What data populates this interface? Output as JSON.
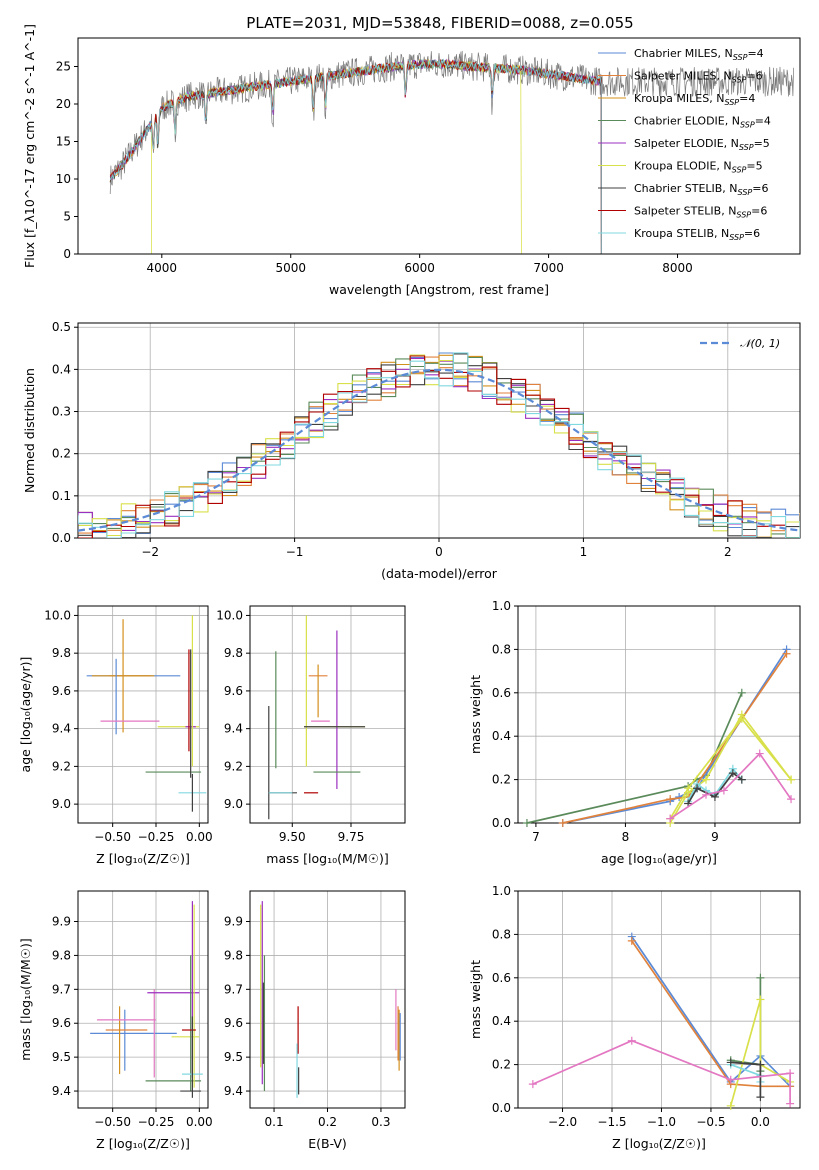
{
  "figure_title": "PLATE=2031, MJD=53848, FIBERID=0088, z=0.055",
  "colors": {
    "Chabrier MILES": "#5b8ad6",
    "Salpeter MILES": "#e0823c",
    "Kroupa MILES": "#d4901e",
    "Chabrier ELODIE": "#5a8a5a",
    "Salpeter ELODIE": "#9b30c0",
    "Kroupa ELODIE": "#d8e04a",
    "Chabrier STELIB": "#404040",
    "Salpeter STELIB": "#b00000",
    "Kroupa STELIB": "#80d8e0",
    "Pink": "#e377c2",
    "Normal": "#5b8ad6"
  },
  "chart_data": [
    {
      "type": "line",
      "title": "PLATE=2031, MJD=53848, FIBERID=0088, z=0.055",
      "xlabel": "wavelength [Angstrom, rest frame]",
      "ylabel": "Flux [f_λ10^-17 erg cm^-2 s^-1 A^-1]",
      "xlim": [
        3350,
        8950
      ],
      "ylim": [
        0,
        28.8
      ],
      "xticks": [
        4000,
        5000,
        6000,
        7000,
        8000
      ],
      "yticks": [
        0,
        5,
        10,
        15,
        20,
        25
      ],
      "grid": false,
      "legend_placement": "right",
      "legend": [
        {
          "name": "Chabrier MILES",
          "nssp": "4"
        },
        {
          "name": "Salpeter MILES",
          "nssp": "6"
        },
        {
          "name": "Kroupa MILES",
          "nssp": "4"
        },
        {
          "name": "Chabrier ELODIE",
          "nssp": "4"
        },
        {
          "name": "Salpeter ELODIE",
          "nssp": "5"
        },
        {
          "name": "Kroupa ELODIE",
          "nssp": "5"
        },
        {
          "name": "Chabrier STELIB",
          "nssp": "6"
        },
        {
          "name": "Salpeter STELIB",
          "nssp": "6"
        },
        {
          "name": "Kroupa STELIB",
          "nssp": "6"
        }
      ],
      "continuum": {
        "x": [
          3600,
          3700,
          3800,
          3900,
          4000,
          4200,
          4400,
          4600,
          4800,
          5000,
          5200,
          5400,
          5600,
          5800,
          6000,
          6200,
          6400,
          6600,
          6800,
          7000,
          7200,
          7400
        ],
        "y": [
          10,
          12,
          14.5,
          17,
          19.5,
          21,
          21.5,
          22,
          22.5,
          23,
          23.5,
          24,
          24.5,
          25,
          25.3,
          25.3,
          25,
          24.8,
          24.5,
          24,
          23.5,
          23
        ]
      },
      "absorption_features": [
        3934,
        3969,
        4102,
        4340,
        4861,
        5175,
        5270,
        5890,
        6563
      ],
      "model_drops": [
        3920,
        6790,
        7410
      ]
    },
    {
      "type": "line",
      "xlabel": "(data-model)/error",
      "ylabel": "Normed distribution",
      "xlim": [
        -2.5,
        2.5
      ],
      "ylim": [
        0,
        0.51
      ],
      "xticks": [
        -2,
        -1,
        0,
        1,
        2
      ],
      "yticks": [
        0.0,
        0.1,
        0.2,
        0.3,
        0.4,
        0.5
      ],
      "grid": true,
      "legend": [
        {
          "name": "𝒩(0, 1)"
        }
      ],
      "legend_placement": "top-right",
      "bin_width": 0.1
    },
    {
      "type": "scatter",
      "xlabel": "Z [log₁₀(Z/Z☉)]",
      "ylabel": "age  [log₁₀(age/yr)]",
      "xlim": [
        -0.7,
        0.05
      ],
      "ylim": [
        8.9,
        10.05
      ],
      "xticks": [
        -0.5,
        -0.25,
        0.0
      ],
      "xtick_labels": [
        "−0.50",
        "−0.25",
        "0.00"
      ],
      "yticks": [
        9.0,
        9.2,
        9.4,
        9.6,
        9.8,
        10.0
      ],
      "grid": true,
      "errorbars": [
        {
          "s": "Chabrier MILES",
          "x": -0.38,
          "xerr": 0.27,
          "y": 9.68,
          "yerr": 0
        },
        {
          "s": "Salpeter MILES",
          "x": -0.4,
          "xerr": 0.12,
          "y": 9.68,
          "yerr": 0.0
        },
        {
          "s": "Kroupa MILES",
          "x": -0.44,
          "xerr": 0.18,
          "y": 9.68,
          "yerr": 0.3
        },
        {
          "s": "Chabrier MILES",
          "x": -0.48,
          "xerr": 0.0,
          "y": 9.57,
          "yerr": 0.2
        },
        {
          "s": "Pink",
          "x": -0.4,
          "xerr": 0.17,
          "y": 9.44,
          "yerr": 0.0
        },
        {
          "s": "Chabrier ELODIE",
          "x": -0.15,
          "xerr": 0.16,
          "y": 9.17,
          "yerr": 0.0
        },
        {
          "s": "Kroupa ELODIE",
          "x": -0.12,
          "xerr": 0.12,
          "y": 9.41,
          "yerr": 0.0
        },
        {
          "s": "Salpeter ELODIE",
          "x": -0.05,
          "xerr": 0.03,
          "y": 9.41,
          "yerr": 0.0
        },
        {
          "s": "Kroupa ELODIE",
          "x": -0.04,
          "xerr": 0.0,
          "y": 9.6,
          "yerr": 0.4
        },
        {
          "s": "Chabrier STELIB",
          "x": -0.05,
          "xerr": 0.0,
          "y": 9.48,
          "yerr": 0.34
        },
        {
          "s": "Salpeter STELIB",
          "x": -0.06,
          "xerr": 0.0,
          "y": 9.55,
          "yerr": 0.27
        },
        {
          "s": "Kroupa STELIB",
          "x": -0.04,
          "xerr": 0.08,
          "y": 9.06,
          "yerr": 0.0
        },
        {
          "s": "Chabrier STELIB",
          "x": -0.04,
          "xerr": 0.0,
          "y": 9.06,
          "yerr": 0.1
        }
      ]
    },
    {
      "type": "scatter",
      "xlabel": "mass [log₁₀(M/M☉)]",
      "ylabel": "",
      "xlim": [
        9.32,
        9.98
      ],
      "ylim": [
        8.9,
        10.05
      ],
      "xticks": [
        9.5,
        9.75
      ],
      "xtick_labels": [
        "9.50",
        "9.75"
      ],
      "yticks": [
        9.0,
        9.2,
        9.4,
        9.6,
        9.8,
        10.0
      ],
      "grid": true,
      "errorbars": [
        {
          "s": "Chabrier ELODIE",
          "x": 9.43,
          "xerr": 0.0,
          "y": 9.5,
          "yerr": 0.31
        },
        {
          "s": "Chabrier STELIB",
          "x": 9.4,
          "xerr": 0.0,
          "y": 9.22,
          "yerr": 0.3
        },
        {
          "s": "Chabrier STELIB",
          "x": 9.46,
          "xerr": 0.06,
          "y": 9.06,
          "yerr": 0.0
        },
        {
          "s": "Kroupa STELIB",
          "x": 9.45,
          "xerr": 0.05,
          "y": 9.06,
          "yerr": 0.0
        },
        {
          "s": "Salpeter STELIB",
          "x": 9.58,
          "xerr": 0.03,
          "y": 9.06,
          "yerr": 0.0
        },
        {
          "s": "Kroupa ELODIE",
          "x": 9.56,
          "xerr": 0.0,
          "y": 9.6,
          "yerr": 0.4
        },
        {
          "s": "Kroupa ELODIE",
          "x": 9.68,
          "xerr": 0.13,
          "y": 9.41,
          "yerr": 0.0
        },
        {
          "s": "Salpeter ELODIE",
          "x": 9.69,
          "xerr": 0.0,
          "y": 9.5,
          "yerr": 0.42
        },
        {
          "s": "Salpeter MILES",
          "x": 9.61,
          "xerr": 0.04,
          "y": 9.68,
          "yerr": 0.0
        },
        {
          "s": "Kroupa MILES",
          "x": 9.61,
          "xerr": 0.0,
          "y": 9.6,
          "yerr": 0.14
        },
        {
          "s": "Pink",
          "x": 9.62,
          "xerr": 0.04,
          "y": 9.44,
          "yerr": 0.0
        },
        {
          "s": "Chabrier ELODIE",
          "x": 9.69,
          "xerr": 0.1,
          "y": 9.17,
          "yerr": 0.0
        },
        {
          "s": "Chabrier STELIB",
          "x": 9.68,
          "xerr": 0.13,
          "y": 9.41,
          "yerr": 0.0
        }
      ]
    },
    {
      "type": "line",
      "xlabel": "age  [log₁₀(age/yr)]",
      "ylabel": "mass weight",
      "xlim": [
        6.8,
        9.95
      ],
      "ylim": [
        0,
        1.0
      ],
      "xticks": [
        7,
        8,
        9
      ],
      "yticks": [
        0.0,
        0.2,
        0.4,
        0.6,
        0.8,
        1.0
      ],
      "grid": true,
      "series": [
        {
          "s": "Chabrier ELODIE",
          "x": [
            6.9,
            8.7,
            8.8,
            8.9,
            9.3
          ],
          "y": [
            0.0,
            0.17,
            0.2,
            0.22,
            0.6
          ]
        },
        {
          "s": "Chabrier MILES",
          "x": [
            7.3,
            8.5,
            8.6,
            8.7,
            8.8,
            9.8
          ],
          "y": [
            0.0,
            0.1,
            0.12,
            0.14,
            0.16,
            0.8
          ]
        },
        {
          "s": "Salpeter MILES",
          "x": [
            7.3,
            8.5,
            8.7,
            9.8
          ],
          "y": [
            0.0,
            0.11,
            0.12,
            0.78
          ]
        },
        {
          "s": "Kroupa ELODIE",
          "x": [
            8.5,
            8.7,
            8.9,
            9.3,
            9.85
          ],
          "y": [
            0.0,
            0.14,
            0.2,
            0.5,
            0.2
          ]
        },
        {
          "s": "Kroupa ELODIE",
          "x": [
            8.5,
            8.7,
            9.3,
            9.85
          ],
          "y": [
            0.02,
            0.16,
            0.48,
            0.2
          ]
        },
        {
          "s": "Kroupa STELIB",
          "x": [
            8.7,
            8.8,
            8.9,
            9.0,
            9.2,
            9.3
          ],
          "y": [
            0.1,
            0.18,
            0.15,
            0.13,
            0.25,
            0.2
          ]
        },
        {
          "s": "Chabrier STELIB",
          "x": [
            8.7,
            8.8,
            9.0,
            9.2,
            9.3
          ],
          "y": [
            0.09,
            0.16,
            0.12,
            0.23,
            0.2
          ]
        },
        {
          "s": "Pink",
          "x": [
            8.5,
            8.9,
            9.1,
            9.5,
            9.85
          ],
          "y": [
            0.02,
            0.13,
            0.15,
            0.32,
            0.11
          ]
        }
      ]
    },
    {
      "type": "scatter",
      "xlabel": "Z [log₁₀(Z/Z☉)]",
      "ylabel": "mass [log₁₀(M/M☉)]",
      "xlim": [
        -0.7,
        0.05
      ],
      "ylim": [
        9.35,
        9.99
      ],
      "xticks": [
        -0.5,
        -0.25,
        0.0
      ],
      "xtick_labels": [
        "−0.50",
        "−0.25",
        "0.00"
      ],
      "yticks": [
        9.4,
        9.5,
        9.6,
        9.7,
        9.8,
        9.9
      ],
      "grid": true,
      "errorbars": [
        {
          "s": "Chabrier MILES",
          "x": -0.38,
          "xerr": 0.25,
          "y": 9.57,
          "yerr": 0.0
        },
        {
          "s": "Chabrier MILES",
          "x": -0.43,
          "xerr": 0.0,
          "y": 9.55,
          "yerr": 0.09
        },
        {
          "s": "Salpeter MILES",
          "x": -0.42,
          "xerr": 0.12,
          "y": 9.58,
          "yerr": 0.0
        },
        {
          "s": "Kroupa MILES",
          "x": -0.46,
          "xerr": 0.0,
          "y": 9.55,
          "yerr": 0.1
        },
        {
          "s": "Pink",
          "x": -0.42,
          "xerr": 0.17,
          "y": 9.61,
          "yerr": 0.0
        },
        {
          "s": "Pink",
          "x": -0.26,
          "xerr": 0.0,
          "y": 9.57,
          "yerr": 0.13
        },
        {
          "s": "Salpeter ELODIE",
          "x": -0.15,
          "xerr": 0.15,
          "y": 9.69,
          "yerr": 0.0
        },
        {
          "s": "Kroupa ELODIE",
          "x": -0.08,
          "xerr": 0.08,
          "y": 9.56,
          "yerr": 0.0
        },
        {
          "s": "Chabrier ELODIE",
          "x": -0.15,
          "xerr": 0.16,
          "y": 9.43,
          "yerr": 0.0
        },
        {
          "s": "Salpeter ELODIE",
          "x": -0.04,
          "xerr": 0.0,
          "y": 9.7,
          "yerr": 0.26
        },
        {
          "s": "Kroupa ELODIE",
          "x": -0.03,
          "xerr": 0.0,
          "y": 9.68,
          "yerr": 0.27
        },
        {
          "s": "Chabrier ELODIE",
          "x": -0.05,
          "xerr": 0.0,
          "y": 9.6,
          "yerr": 0.2
        },
        {
          "s": "Salpeter STELIB",
          "x": -0.06,
          "xerr": 0.04,
          "y": 9.58,
          "yerr": 0.0
        },
        {
          "s": "Kroupa STELIB",
          "x": -0.04,
          "xerr": 0.06,
          "y": 9.45,
          "yerr": 0.0
        },
        {
          "s": "Chabrier STELIB",
          "x": -0.05,
          "xerr": 0.06,
          "y": 9.4,
          "yerr": 0.0
        },
        {
          "s": "Chabrier STELIB",
          "x": -0.04,
          "xerr": 0.0,
          "y": 9.5,
          "yerr": 0.12
        }
      ]
    },
    {
      "type": "scatter",
      "xlabel": "E(B-V)",
      "ylabel": "",
      "xlim": [
        0.055,
        0.345
      ],
      "ylim": [
        9.35,
        9.99
      ],
      "xticks": [
        0.1,
        0.2,
        0.3
      ],
      "xtick_labels": [
        "0.1",
        "0.2",
        "0.3"
      ],
      "yticks": [
        9.4,
        9.5,
        9.6,
        9.7,
        9.8,
        9.9
      ],
      "grid": true,
      "errorbars": [
        {
          "s": "Kroupa ELODIE",
          "x": 0.075,
          "xerr": 0.0,
          "y": 9.71,
          "yerr": 0.24
        },
        {
          "s": "Salpeter ELODIE",
          "x": 0.078,
          "xerr": 0.0,
          "y": 9.69,
          "yerr": 0.27
        },
        {
          "s": "Chabrier ELODIE",
          "x": 0.082,
          "xerr": 0.0,
          "y": 9.6,
          "yerr": 0.2
        },
        {
          "s": "Chabrier STELIB",
          "x": 0.08,
          "xerr": 0.0,
          "y": 9.6,
          "yerr": 0.12
        },
        {
          "s": "Salpeter STELIB",
          "x": 0.145,
          "xerr": 0.0,
          "y": 9.58,
          "yerr": 0.07
        },
        {
          "s": "Kroupa STELIB",
          "x": 0.143,
          "xerr": 0.0,
          "y": 9.46,
          "yerr": 0.08
        },
        {
          "s": "Chabrier STELIB",
          "x": 0.146,
          "xerr": 0.0,
          "y": 9.43,
          "yerr": 0.04
        },
        {
          "s": "Pink",
          "x": 0.328,
          "xerr": 0.0,
          "y": 9.61,
          "yerr": 0.09
        },
        {
          "s": "Salpeter MILES",
          "x": 0.332,
          "xerr": 0.0,
          "y": 9.57,
          "yerr": 0.08
        },
        {
          "s": "Kroupa MILES",
          "x": 0.334,
          "xerr": 0.0,
          "y": 9.55,
          "yerr": 0.09
        },
        {
          "s": "Chabrier MILES",
          "x": 0.336,
          "xerr": 0.0,
          "y": 9.56,
          "yerr": 0.07
        }
      ]
    },
    {
      "type": "line",
      "xlabel": "Z [log₁₀(Z/Z☉)]",
      "ylabel": "mass weight",
      "xlim": [
        -2.45,
        0.4
      ],
      "ylim": [
        0,
        1.0
      ],
      "xticks": [
        -2.0,
        -1.5,
        -1.0,
        -0.5,
        0.0
      ],
      "xtick_labels": [
        "−2.0",
        "−1.5",
        "−1.0",
        "−0.5",
        "0.0"
      ],
      "yticks": [
        0.0,
        0.2,
        0.4,
        0.6,
        0.8,
        1.0
      ],
      "grid": true,
      "series": [
        {
          "s": "Chabrier MILES",
          "x": [
            -1.3,
            -0.3,
            0.0,
            0.3
          ],
          "y": [
            0.79,
            0.12,
            0.24,
            0.1
          ]
        },
        {
          "s": "Salpeter MILES",
          "x": [
            -1.3,
            -0.3,
            0.0,
            0.3
          ],
          "y": [
            0.77,
            0.11,
            0.1,
            0.1
          ]
        },
        {
          "s": "Chabrier ELODIE",
          "x": [
            -0.3,
            0.0,
            0.0,
            0.0
          ],
          "y": [
            0.22,
            0.2,
            0.6,
            0.17
          ]
        },
        {
          "s": "Kroupa ELODIE",
          "x": [
            -0.3,
            0.0,
            0.0,
            0.3
          ],
          "y": [
            0.01,
            0.5,
            0.2,
            0.12
          ]
        },
        {
          "s": "Kroupa STELIB",
          "x": [
            -0.3,
            0.0,
            0.0
          ],
          "y": [
            0.2,
            0.15,
            0.12
          ]
        },
        {
          "s": "Chabrier STELIB",
          "x": [
            -0.3,
            0.0,
            0.0
          ],
          "y": [
            0.21,
            0.2,
            0.05
          ]
        },
        {
          "s": "Pink",
          "x": [
            -2.3,
            -1.3,
            -0.3,
            0.3,
            0.3
          ],
          "y": [
            0.11,
            0.31,
            0.13,
            0.16,
            0.02
          ]
        }
      ]
    }
  ]
}
